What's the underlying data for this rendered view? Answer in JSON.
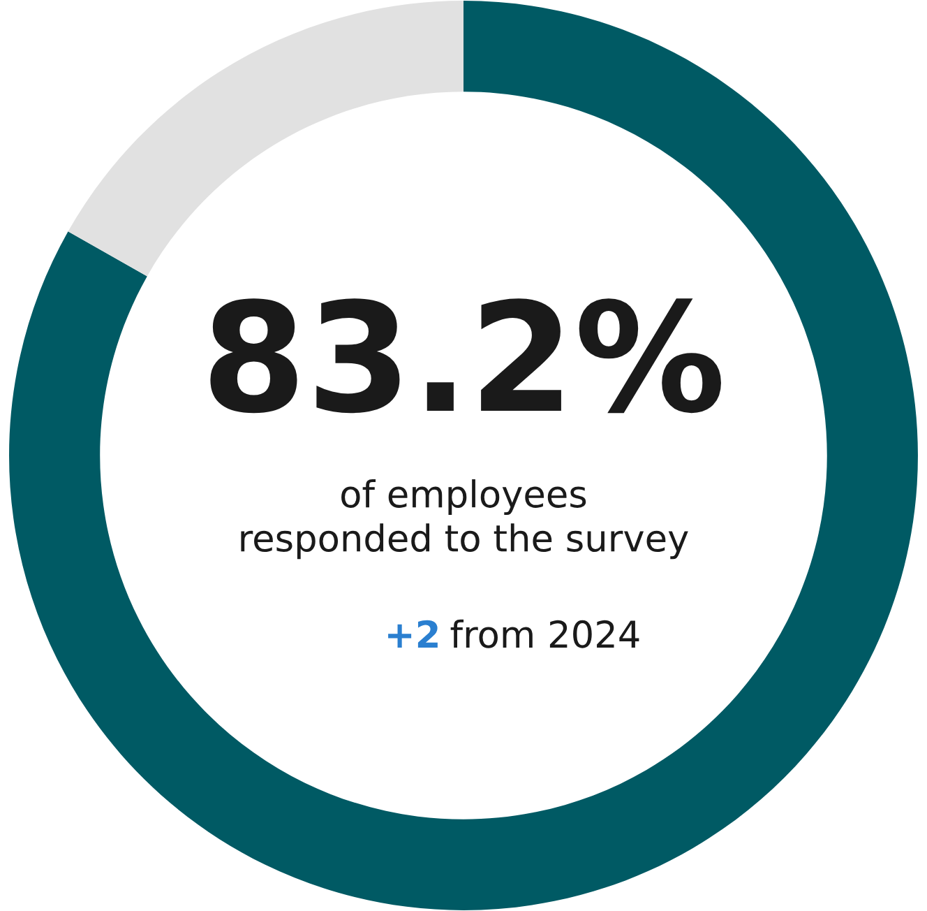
{
  "chart_data": {
    "type": "donut",
    "categories": [
      null,
      null
    ],
    "values": [
      83.2,
      16.8
    ],
    "colors": [
      "#005a64",
      "#e1e1e1"
    ],
    "value_labels": [
      "83.2%",
      null
    ],
    "annotations": [
      "of employees\nresponded to the survey",
      "+2",
      "from 2024"
    ]
  }
}
